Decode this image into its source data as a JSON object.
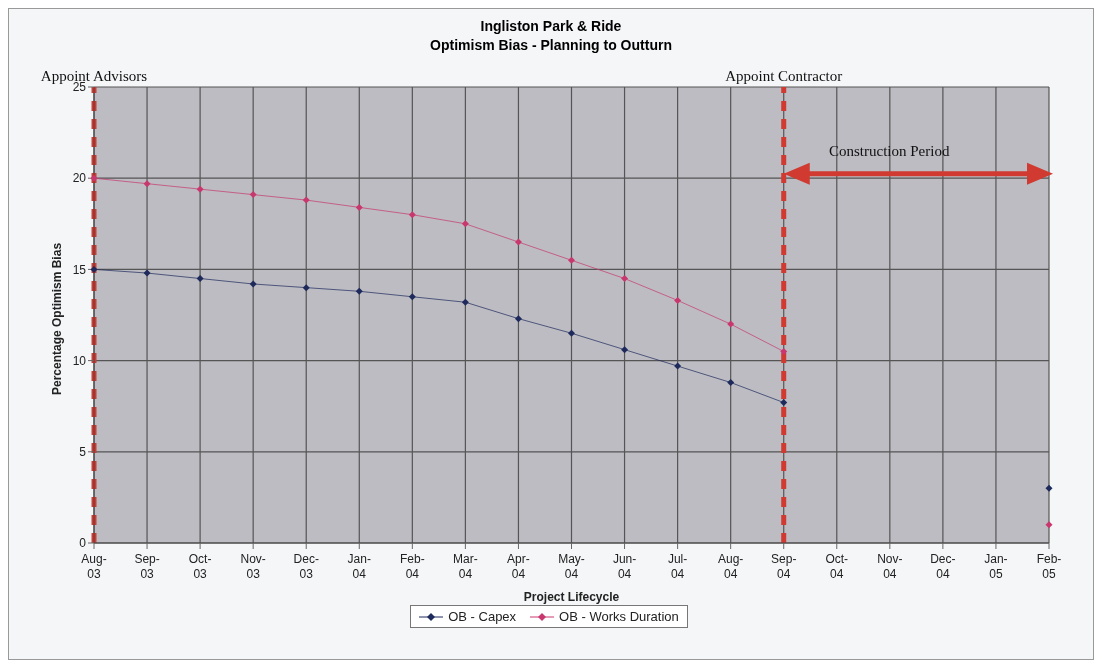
{
  "chart_data": {
    "type": "line",
    "title": "Ingliston Park & Ride",
    "subtitle": "Optimism Bias - Planning to Outturn",
    "xlabel": "Project Lifecycle",
    "ylabel": "Percentage Optimism Bias",
    "categories": [
      "Aug-03",
      "Sep-03",
      "Oct-03",
      "Nov-03",
      "Dec-03",
      "Jan-04",
      "Feb-04",
      "Mar-04",
      "Apr-04",
      "May-04",
      "Jun-04",
      "Jul-04",
      "Aug-04",
      "Sep-04",
      "Oct-04",
      "Nov-04",
      "Dec-04",
      "Jan-05",
      "Feb-05"
    ],
    "series": [
      {
        "name": "OB - Capex",
        "color": "#1f2a5c",
        "values": [
          15,
          14.8,
          14.5,
          14.2,
          14,
          13.8,
          13.5,
          13.2,
          12.3,
          11.5,
          10.6,
          9.7,
          8.8,
          7.7,
          null,
          null,
          null,
          null,
          3
        ]
      },
      {
        "name": "OB - Works Duration",
        "color": "#c8386e",
        "values": [
          20,
          19.7,
          19.4,
          19.1,
          18.8,
          18.4,
          18,
          17.5,
          16.5,
          15.5,
          14.5,
          13.3,
          12,
          10.5,
          null,
          null,
          null,
          null,
          1
        ]
      }
    ],
    "ylim": [
      0,
      25
    ],
    "yticks": [
      0,
      5,
      10,
      15,
      20,
      25
    ],
    "grid": true,
    "legend": "bottom",
    "marker": "diamond",
    "ref_lines": [
      {
        "axis": "x",
        "value": "Aug-03",
        "label": "Appoint Advisors",
        "color": "#d03a30",
        "line_style": "dashed"
      },
      {
        "axis": "x",
        "value": "Sep-04",
        "label": "Appoint Contractor",
        "color": "#d03a30",
        "line_style": "dashed"
      }
    ],
    "annotations": [
      "Construction Period"
    ]
  }
}
